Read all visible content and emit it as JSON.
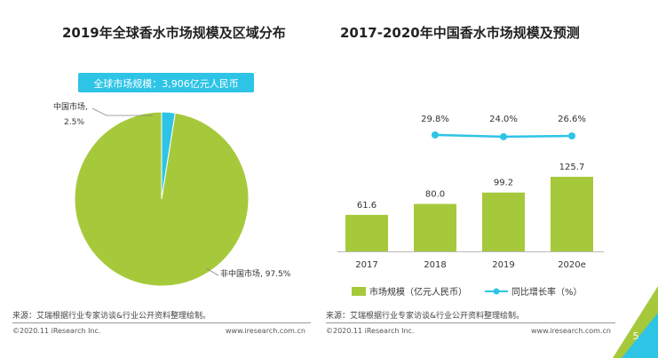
{
  "titles": {
    "left": "2019年全球香水市场规模及区域分布",
    "right": "2017-2020年中国香水市场规模及预测"
  },
  "chart_data": [
    {
      "type": "pie",
      "title": "2019年全球香水市场规模及区域分布",
      "callout": "全球市场规模：3,906亿元人民币",
      "slices": [
        {
          "label": "中国市场,",
          "value": 2.5,
          "value_label": "2.5%",
          "color": "#2ec4e6"
        },
        {
          "label": "非中国市场,",
          "value": 97.5,
          "value_label": "97.5%",
          "color": "#a6c93b"
        }
      ]
    },
    {
      "type": "bar",
      "title": "2017-2020年中国香水市场规模及预测",
      "categories": [
        "2017",
        "2018",
        "2019",
        "2020e"
      ],
      "series": [
        {
          "name": "市场规模（亿元人民币）",
          "values": [
            61.6,
            80.0,
            99.2,
            125.7
          ],
          "labels": [
            "61.6",
            "80.0",
            "99.2",
            "125.7"
          ],
          "color": "#a6c93b"
        }
      ],
      "line_series": {
        "name": "同比增长率（%）",
        "categories": [
          "2018",
          "2019",
          "2020e"
        ],
        "values": [
          29.8,
          24.0,
          26.6
        ],
        "labels": [
          "29.8%",
          "24.0%",
          "26.6%"
        ],
        "color": "#2ec4e6"
      },
      "legend_position": "bottom"
    }
  ],
  "footer": {
    "source": "来源：艾瑞根据行业专家访谈&行业公开资料整理绘制。",
    "copyright": "©2020.11 iResearch Inc.",
    "website": "www.iresearch.com.cn",
    "page_number": "5"
  },
  "colors": {
    "accent_green": "#a6c93b",
    "accent_blue": "#2ec4e6"
  }
}
